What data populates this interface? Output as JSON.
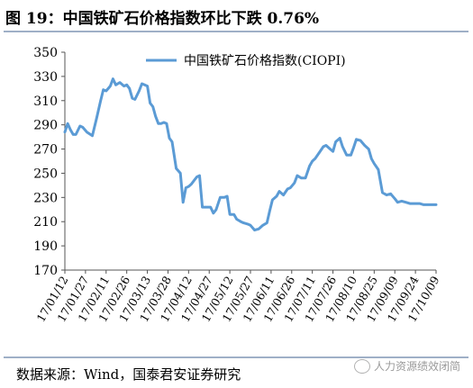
{
  "figure": {
    "title": "图 19：中国铁矿石价格指数环比下跌 0.76%",
    "source": "数据来源：Wind，国泰君安证券研究",
    "watermark": "人力资源绩效闭简"
  },
  "chart_data": {
    "type": "line",
    "title": "",
    "xlabel": "",
    "ylabel": "",
    "ylim": [
      170,
      350
    ],
    "yticks": [
      170,
      190,
      210,
      230,
      250,
      270,
      290,
      310,
      330,
      350
    ],
    "grid": false,
    "legend_position": "top-center",
    "x_tick_labels": [
      "17/01/12",
      "17/01/27",
      "17/02/11",
      "17/02/26",
      "17/03/13",
      "17/03/28",
      "17/04/12",
      "17/04/27",
      "17/05/12",
      "17/05/27",
      "17/06/11",
      "17/06/26",
      "17/07/11",
      "17/07/26",
      "17/08/10",
      "17/08/25",
      "17/09/09",
      "17/09/24",
      "17/10/09"
    ],
    "x_range": [
      "2017-01-12",
      "2017-10-09"
    ],
    "color": "#5b9bd5",
    "series": [
      {
        "name": "中国铁矿石价格指数(CIOPI)",
        "x": [
          "2017-01-12",
          "2017-01-14",
          "2017-01-16",
          "2017-01-18",
          "2017-01-20",
          "2017-01-23",
          "2017-01-25",
          "2017-01-28",
          "2017-02-01",
          "2017-02-04",
          "2017-02-07",
          "2017-02-09",
          "2017-02-11",
          "2017-02-14",
          "2017-02-16",
          "2017-02-18",
          "2017-02-21",
          "2017-02-22",
          "2017-02-24",
          "2017-02-26",
          "2017-02-28",
          "2017-03-02",
          "2017-03-04",
          "2017-03-07",
          "2017-03-09",
          "2017-03-11",
          "2017-03-13",
          "2017-03-15",
          "2017-03-17",
          "2017-03-19",
          "2017-03-21",
          "2017-03-23",
          "2017-03-25",
          "2017-03-27",
          "2017-03-29",
          "2017-03-31",
          "2017-04-03",
          "2017-04-06",
          "2017-04-08",
          "2017-04-10",
          "2017-04-12",
          "2017-04-14",
          "2017-04-16",
          "2017-04-18",
          "2017-04-20",
          "2017-04-22",
          "2017-04-25",
          "2017-04-28",
          "2017-04-30",
          "2017-05-02",
          "2017-05-05",
          "2017-05-08",
          "2017-05-10",
          "2017-05-12",
          "2017-05-15",
          "2017-05-17",
          "2017-05-20",
          "2017-05-22",
          "2017-05-25",
          "2017-05-27",
          "2017-05-30",
          "2017-06-02",
          "2017-06-05",
          "2017-06-08",
          "2017-06-10",
          "2017-06-12",
          "2017-06-15",
          "2017-06-17",
          "2017-06-20",
          "2017-06-23",
          "2017-06-25",
          "2017-06-28",
          "2017-06-30",
          "2017-07-03",
          "2017-07-06",
          "2017-07-09",
          "2017-07-11",
          "2017-07-13",
          "2017-07-16",
          "2017-07-19",
          "2017-07-21",
          "2017-07-24",
          "2017-07-26",
          "2017-07-28",
          "2017-07-31",
          "2017-08-02",
          "2017-08-05",
          "2017-08-08",
          "2017-08-10",
          "2017-08-12",
          "2017-08-15",
          "2017-08-18",
          "2017-08-21",
          "2017-08-23",
          "2017-08-25",
          "2017-08-28",
          "2017-08-31",
          "2017-09-03",
          "2017-09-06",
          "2017-09-09",
          "2017-09-11",
          "2017-09-14",
          "2017-09-17",
          "2017-09-20",
          "2017-09-22",
          "2017-09-24",
          "2017-09-27",
          "2017-09-30",
          "2017-10-03",
          "2017-10-06",
          "2017-10-09"
        ],
        "values": [
          284,
          291,
          286,
          282,
          282,
          289,
          288,
          284,
          281,
          295,
          310,
          319,
          318,
          322,
          328,
          323,
          325,
          324,
          322,
          323,
          320,
          312,
          311,
          318,
          324,
          323,
          322,
          308,
          305,
          297,
          291,
          291,
          292,
          291,
          279,
          276,
          254,
          250,
          226,
          238,
          239,
          241,
          244,
          247,
          248,
          222,
          222,
          222,
          217,
          220,
          230,
          230,
          231,
          216,
          216,
          212,
          210,
          209,
          208,
          207,
          203,
          204,
          207,
          209,
          219,
          228,
          231,
          235,
          232,
          237,
          238,
          242,
          248,
          246,
          246,
          256,
          260,
          262,
          267,
          272,
          273,
          270,
          268,
          276,
          279,
          272,
          265,
          265,
          271,
          278,
          277,
          273,
          270,
          262,
          258,
          253,
          234,
          232,
          233,
          229,
          226,
          227,
          226,
          225,
          225,
          225,
          225,
          224,
          224,
          224,
          224
        ]
      }
    ]
  }
}
